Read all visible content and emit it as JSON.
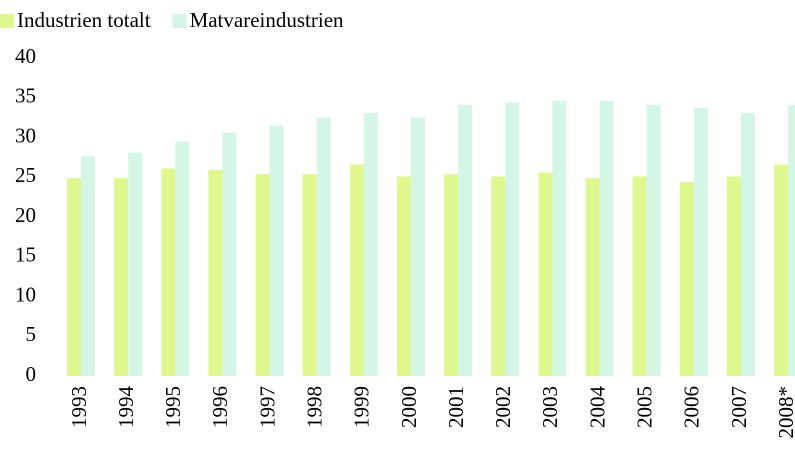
{
  "chart_data": {
    "type": "bar",
    "categories": [
      "1993",
      "1994",
      "1995",
      "1996",
      "1997",
      "1998",
      "1999",
      "2000",
      "2001",
      "2002",
      "2003",
      "2004",
      "2005",
      "2006",
      "2007",
      "2008*"
    ],
    "series": [
      {
        "name": "Industrien totalt",
        "color": "#def78f",
        "values": [
          24.9,
          24.9,
          26.1,
          25.9,
          25.4,
          25.4,
          26.6,
          25.1,
          25.4,
          25.1,
          25.6,
          24.9,
          25.1,
          24.4,
          25.1,
          26.6
        ]
      },
      {
        "name": "Matvareindustrien",
        "color": "#d5f5e5",
        "values": [
          27.6,
          28.1,
          29.5,
          30.6,
          31.5,
          32.5,
          33.1,
          32.5,
          34.1,
          34.4,
          34.6,
          34.6,
          34.1,
          33.7,
          33.1,
          34.1
        ]
      }
    ],
    "ylim": [
      0,
      40
    ],
    "yticks": [
      0,
      5,
      10,
      15,
      20,
      25,
      30,
      35,
      40
    ],
    "grid": false,
    "legend": "top-left"
  }
}
